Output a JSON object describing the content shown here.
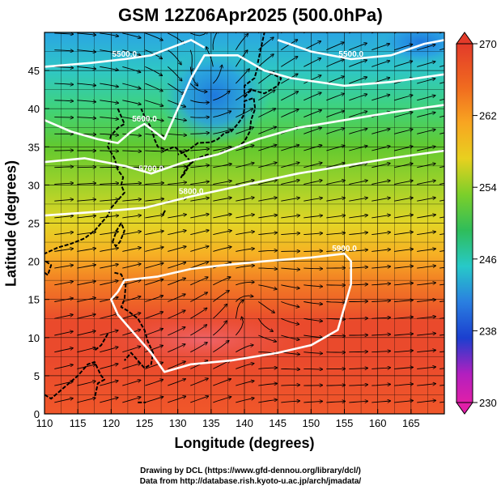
{
  "title": "GSM 12Z06Apr2025 (500.0hPa)",
  "axes": {
    "xlabel": "Longitude (degrees)",
    "ylabel": "Latitude  (degrees)",
    "xticks": [
      "110",
      "115",
      "120",
      "125",
      "130",
      "135",
      "140",
      "145",
      "150",
      "155",
      "160",
      "165"
    ],
    "yticks": [
      "0",
      "5",
      "10",
      "15",
      "20",
      "25",
      "30",
      "35",
      "40",
      "45"
    ]
  },
  "colorbar": {
    "ticks": [
      "270",
      "262",
      "254",
      "246",
      "238",
      "230"
    ],
    "colors": [
      "#e33b2a",
      "#f06a1f",
      "#f8a521",
      "#e8d01f",
      "#7ccf2a",
      "#2fbd5a",
      "#27c9c8",
      "#2a7fe0",
      "#1b3fcf",
      "#b21fbf",
      "#e01fa8"
    ]
  },
  "contour_labels": [
    "5900.0",
    "5800.0",
    "5600.0",
    "5500.0",
    "5700.0",
    "5600.0",
    "5500.0"
  ],
  "footer": {
    "line1": "Drawing by DCL (https://www.gfd-dennou.org/library/dcl/)",
    "line2": "Data from http://database.rish.kyoto-u.ac.jp/arch/jmadata/"
  },
  "chart_data": {
    "type": "heatmap",
    "title": "GSM 12Z06Apr2025 (500.0hPa)",
    "xlabel": "Longitude (degrees)",
    "ylabel": "Latitude  (degrees)",
    "xlim": [
      110,
      170
    ],
    "ylim": [
      0,
      50
    ],
    "colorbar_range": [
      230,
      270
    ],
    "colorbar_ticks": [
      270,
      262,
      254,
      246,
      238,
      230
    ],
    "grid": true,
    "contours": [
      {
        "label": "5900.0",
        "points": [
          [
            121,
            16
          ],
          [
            122,
            17.5
          ],
          [
            127,
            18
          ],
          [
            132,
            19
          ],
          [
            137,
            19.5
          ],
          [
            143,
            20
          ],
          [
            150,
            20.5
          ],
          [
            155,
            21
          ],
          [
            156,
            20
          ],
          [
            156,
            17
          ],
          [
            155,
            14
          ],
          [
            154,
            11
          ],
          [
            150,
            9
          ],
          [
            145,
            8
          ],
          [
            138,
            7
          ],
          [
            132,
            6.5
          ],
          [
            128,
            5.5
          ],
          [
            126,
            8
          ],
          [
            123,
            11
          ],
          [
            121,
            13
          ],
          [
            120,
            15
          ],
          [
            121,
            16
          ]
        ]
      },
      {
        "label": "5800.0",
        "points": [
          [
            110,
            26
          ],
          [
            118,
            26.5
          ],
          [
            125,
            27
          ],
          [
            132,
            28.5
          ],
          [
            140,
            30
          ],
          [
            148,
            31.5
          ],
          [
            155,
            32.5
          ],
          [
            162,
            33.5
          ],
          [
            170,
            34.5
          ]
        ]
      },
      {
        "label": "5700.0",
        "points": [
          [
            110,
            33
          ],
          [
            116,
            33.5
          ],
          [
            122,
            32.5
          ],
          [
            126,
            31.5
          ],
          [
            131,
            33
          ],
          [
            136,
            34
          ],
          [
            142,
            36
          ],
          [
            148,
            37.5
          ],
          [
            155,
            38.5
          ],
          [
            162,
            39.5
          ],
          [
            170,
            40.5
          ]
        ]
      },
      {
        "label": "5600.0",
        "points": [
          [
            110,
            38.5
          ],
          [
            114,
            37
          ],
          [
            118,
            36
          ],
          [
            121,
            35.5
          ],
          [
            123,
            37
          ],
          [
            125,
            38
          ],
          [
            128,
            36
          ],
          [
            130,
            40
          ],
          [
            132,
            44
          ],
          [
            134,
            47
          ],
          [
            139,
            47
          ],
          [
            143,
            45
          ],
          [
            147,
            44
          ],
          [
            155,
            43
          ],
          [
            162,
            43.5
          ],
          [
            170,
            44.5
          ]
        ]
      },
      {
        "label": "5500.0",
        "points": [
          [
            110,
            45.5
          ],
          [
            117,
            46
          ],
          [
            122,
            46.5
          ],
          [
            126,
            47
          ],
          [
            129,
            48
          ],
          [
            132,
            49
          ],
          [
            134,
            48
          ]
        ]
      },
      {
        "label": "5500.0",
        "points": [
          [
            145,
            49
          ],
          [
            150,
            47.5
          ],
          [
            156,
            46.5
          ],
          [
            162,
            47
          ],
          [
            167,
            48.5
          ],
          [
            170,
            49
          ]
        ]
      }
    ],
    "field": [
      {
        "lat": 50,
        "value": 245
      },
      {
        "lat": 45,
        "value": 248
      },
      {
        "lat": 40,
        "value": 251
      },
      {
        "lat": 35,
        "value": 254
      },
      {
        "lat": 30,
        "value": 257
      },
      {
        "lat": 25,
        "value": 260
      },
      {
        "lat": 20,
        "value": 263
      },
      {
        "lat": 15,
        "value": 266
      },
      {
        "lat": 10,
        "value": 267
      },
      {
        "lat": 5,
        "value": 266
      },
      {
        "lat": 0,
        "value": 265
      }
    ],
    "cold_core": {
      "lon": 134,
      "lat": 44,
      "value": 243
    }
  }
}
